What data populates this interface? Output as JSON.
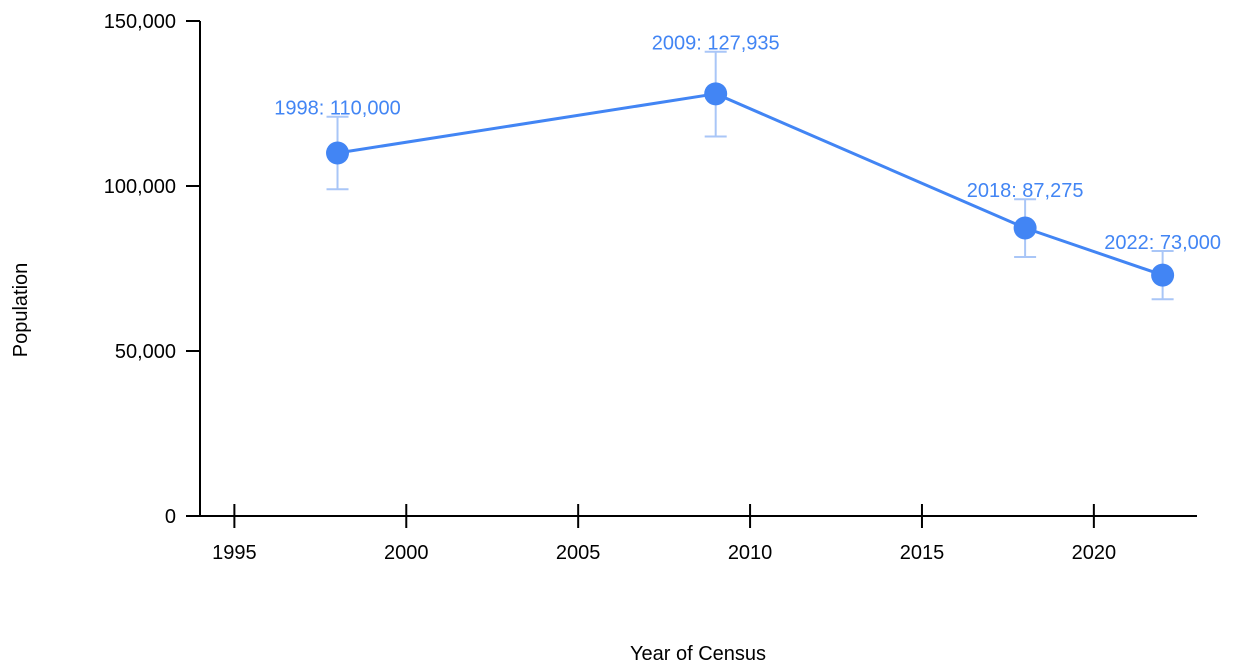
{
  "chart_data": {
    "type": "line",
    "title": "",
    "xlabel": "Year of Census",
    "ylabel": "Population",
    "xlim": [
      1994,
      2023
    ],
    "ylim": [
      0,
      150000
    ],
    "x_ticks": [
      1995,
      2000,
      2005,
      2010,
      2015,
      2020
    ],
    "x_tick_labels": [
      "1995",
      "2000",
      "2005",
      "2010",
      "2015",
      "2020"
    ],
    "y_ticks": [
      0,
      50000,
      100000,
      150000
    ],
    "y_tick_labels": [
      "0",
      "50,000",
      "100,000",
      "150,000"
    ],
    "grid": false,
    "legend": "none",
    "series": [
      {
        "color": "#4285F4",
        "errorbar_color": "#A9C6F7",
        "points": [
          {
            "x": 1998,
            "y": 110000,
            "err_low": 99000,
            "err_high": 121000,
            "label": "1998: 110,000"
          },
          {
            "x": 2009,
            "y": 127935,
            "err_low": 115000,
            "err_high": 140700,
            "label": "2009: 127,935"
          },
          {
            "x": 2018,
            "y": 87275,
            "err_low": 78500,
            "err_high": 96000,
            "label": "2018: 87,275"
          },
          {
            "x": 2022,
            "y": 73000,
            "err_low": 65700,
            "err_high": 80300,
            "label": "2022: 73,000"
          }
        ]
      }
    ]
  }
}
